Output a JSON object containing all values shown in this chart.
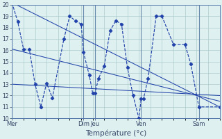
{
  "xlabel": "Température (°c)",
  "background_color": "#dff0f0",
  "grid_color": "#aacccc",
  "line_color": "#2244aa",
  "ylim": [
    10,
    20
  ],
  "yticks": [
    10,
    11,
    12,
    13,
    14,
    15,
    16,
    17,
    18,
    19,
    20
  ],
  "xlim": [
    0,
    18
  ],
  "day_labels": [
    "Mer",
    "Dim",
    "Jeu",
    "Ven",
    "Sam"
  ],
  "day_positions": [
    0,
    6.2,
    7.2,
    11.2,
    16.2
  ],
  "main_x": [
    0,
    0.5,
    1.0,
    1.5,
    2.0,
    2.5,
    3.0,
    3.5,
    4.5,
    5.0,
    5.5,
    6.0,
    6.2,
    6.7,
    7.0,
    7.2,
    7.5,
    8.0,
    8.5,
    9.0,
    9.5,
    10.0,
    10.5,
    11.0,
    11.2,
    11.4,
    11.8,
    12.5,
    13.0,
    14.0,
    15.0,
    15.5,
    16.2,
    18.0
  ],
  "main_y": [
    20.2,
    18.5,
    16.1,
    16.1,
    13.0,
    11.0,
    13.1,
    11.8,
    17.0,
    19.0,
    18.6,
    18.3,
    15.8,
    13.8,
    12.2,
    12.2,
    13.5,
    14.6,
    17.7,
    18.6,
    18.3,
    14.5,
    12.0,
    10.0,
    11.7,
    11.7,
    13.5,
    19.0,
    19.0,
    16.5,
    16.5,
    14.8,
    11.0,
    11.0
  ],
  "trend1_x": [
    0,
    18
  ],
  "trend1_y": [
    20.2,
    11.0
  ],
  "trend2_x": [
    0,
    18
  ],
  "trend2_y": [
    16.1,
    11.5
  ],
  "trend3_x": [
    0,
    18
  ],
  "trend3_y": [
    13.0,
    12.0
  ]
}
